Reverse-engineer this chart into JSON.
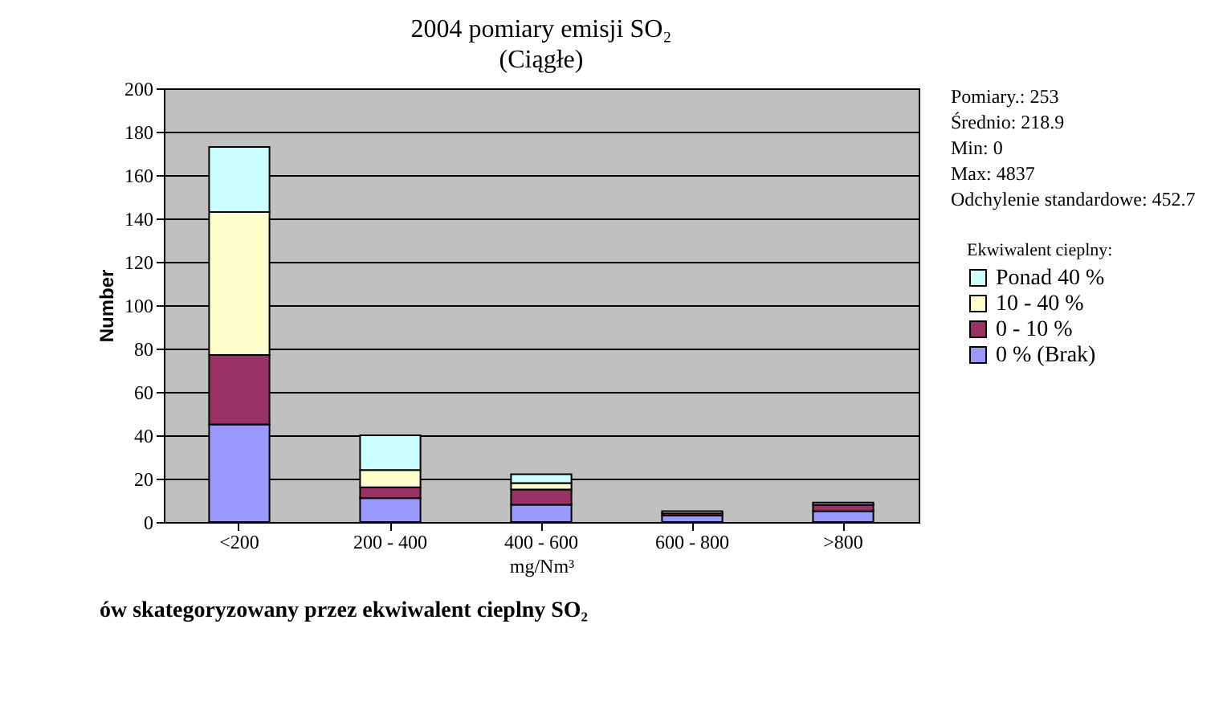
{
  "chart_data": {
    "type": "bar",
    "title": "2004 pomiary emisji SO₂",
    "subtitle": "(Ciągłe)",
    "xlabel": "mg/Nm³",
    "ylabel": "Number",
    "legend_title": "Ekwiwalent cieplny:",
    "categories": [
      "<200",
      "200 - 400",
      "400 - 600",
      "600 - 800",
      ">800"
    ],
    "stacked": true,
    "series": [
      {
        "name": "0 % (Brak)",
        "color": "#9999ff",
        "values": [
          45,
          11,
          8,
          3,
          5
        ]
      },
      {
        "name": "0 - 10 %",
        "color": "#993366",
        "values": [
          32,
          5,
          7,
          1,
          3
        ]
      },
      {
        "name": "10 - 40 %",
        "color": "#ffffcc",
        "values": [
          66,
          8,
          3,
          null,
          null
        ]
      },
      {
        "name": "Ponad 40 %",
        "color": "#ccffff",
        "values": [
          30,
          16,
          4,
          1,
          1
        ]
      }
    ],
    "ylim": [
      0,
      200
    ],
    "yticks": [
      0,
      20,
      40,
      60,
      80,
      100,
      120,
      140,
      160,
      180,
      200
    ],
    "grid": "y",
    "legend": "right",
    "annotations": [
      "Pomiary.: 253",
      "Średnio: 218.9",
      "Min: 0",
      "Max: 4837",
      "Odchylenie standardowe: 452.7",
      "ów skategoryzowany przez ekwiwalent cieplny SO₂"
    ]
  }
}
